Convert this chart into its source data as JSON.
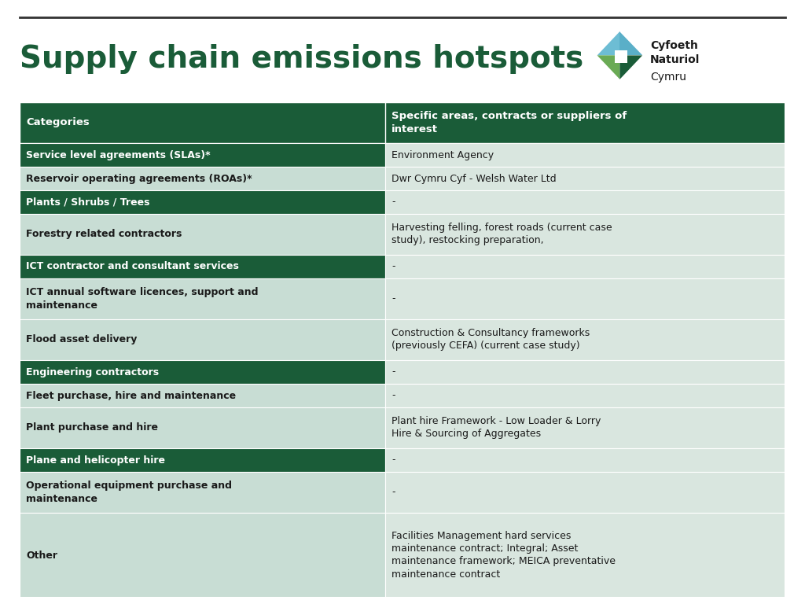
{
  "title": "Supply chain emissions hotspots",
  "title_color": "#1a5c38",
  "title_fontsize": 28,
  "bg_color": "#ffffff",
  "line_color": "#333333",
  "header_bg": "#1a5c38",
  "header_text_color": "#ffffff",
  "dark_row_bg": "#1a5c38",
  "dark_row_text": "#ffffff",
  "light_row_bg_left": "#c8ddd4",
  "light_row_bg_right": "#d9e6df",
  "light_row_text": "#1a1a1a",
  "col1_header": "Categories",
  "col2_header": "Specific areas, contracts or suppliers of\ninterest",
  "logo_text_bold": "Cyfoeth\nNaturiol",
  "logo_text_regular": "Cymru",
  "rows": [
    {
      "cat": "Service level agreements (SLAs)*",
      "detail": "Environment Agency",
      "dark": true
    },
    {
      "cat": "Reservoir operating agreements (ROAs)*",
      "detail": "Dwr Cymru Cyf - Welsh Water Ltd",
      "dark": false
    },
    {
      "cat": "Plants / Shrubs / Trees",
      "detail": "-",
      "dark": true
    },
    {
      "cat": "Forestry related contractors",
      "detail": "Harvesting felling, forest roads (current case\nstudy), restocking preparation,",
      "dark": false
    },
    {
      "cat": "ICT contractor and consultant services",
      "detail": "-",
      "dark": true
    },
    {
      "cat": "ICT annual software licences, support and\nmaintenance",
      "detail": "-",
      "dark": false
    },
    {
      "cat": "Flood asset delivery",
      "detail": "Construction & Consultancy frameworks\n(previously CEFA) (current case study)",
      "dark": false
    },
    {
      "cat": "Engineering contractors",
      "detail": "-",
      "dark": true
    },
    {
      "cat": "Fleet purchase, hire and maintenance",
      "detail": "-",
      "dark": false
    },
    {
      "cat": "Plant purchase and hire",
      "detail": "Plant hire Framework - Low Loader & Lorry\nHire & Sourcing of Aggregates",
      "dark": false
    },
    {
      "cat": "Plane and helicopter hire",
      "detail": "-",
      "dark": true
    },
    {
      "cat": "Operational equipment purchase and\nmaintenance",
      "detail": "-",
      "dark": false
    },
    {
      "cat": "Other",
      "detail": "Facilities Management hard services\nmaintenance contract; Integral; Asset\nmaintenance framework; MEICA preventative\nmaintenance contract",
      "dark": false
    }
  ]
}
